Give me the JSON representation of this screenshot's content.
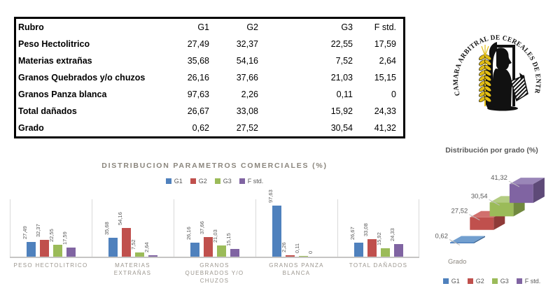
{
  "table": {
    "headers": [
      "Rubro",
      "G1",
      "G2",
      "G3",
      "F std."
    ],
    "rows": [
      {
        "label": "Peso Hectolitrico",
        "values": [
          "27,49",
          "32,37",
          "22,55",
          "17,59"
        ]
      },
      {
        "label": "Materias extrañas",
        "values": [
          "35,68",
          "54,16",
          "7,52",
          "2,64"
        ]
      },
      {
        "label": "Granos Quebrados y/o chuzos",
        "values": [
          "26,16",
          "37,66",
          "21,03",
          "15,15"
        ]
      },
      {
        "label": "Granos Panza blanca",
        "values": [
          "97,63",
          "2,26",
          "0,11",
          "0"
        ]
      },
      {
        "label": "Total dañados",
        "values": [
          "26,67",
          "33,08",
          "15,92",
          "24,33"
        ]
      },
      {
        "label": "Grado",
        "values": [
          "0,62",
          "27,52",
          "30,54",
          "41,32"
        ]
      }
    ]
  },
  "logo": {
    "text": "CAMARA ARBITRAL DE CEREALES DE ENTRE RIOS",
    "wheat_color": "#e2bd15"
  },
  "chart_data": [
    {
      "type": "bar",
      "title": "DISTRIBUCION PARAMETROS COMERCIALES (%)",
      "categories": [
        "PESO HECTOLITRICO",
        "MATERIAS EXTRAÑAS",
        "GRANOS QUEBRADOS Y/O CHUZOS",
        "GRANOS PANZA BLANCA",
        "TOTAL DAÑADOS"
      ],
      "category_lines": [
        [
          "PESO HECTOLITRICO"
        ],
        [
          "MATERIAS",
          "EXTRAÑAS"
        ],
        [
          "GRANOS",
          "QUEBRADOS Y/O",
          "CHUZOS"
        ],
        [
          "GRANOS PANZA",
          "BLANCA"
        ],
        [
          "TOTAL DAÑADOS"
        ]
      ],
      "series": [
        {
          "name": "G1",
          "color": "#4f81bd",
          "values": [
            27.49,
            35.68,
            26.16,
            97.63,
            26.67
          ],
          "labels": [
            "27,49",
            "35,68",
            "26,16",
            "97,63",
            "26,67"
          ]
        },
        {
          "name": "G2",
          "color": "#c0504d",
          "values": [
            32.37,
            54.16,
            37.66,
            2.26,
            33.08
          ],
          "labels": [
            "32,37",
            "54,16",
            "37,66",
            "2,26",
            "33,08"
          ]
        },
        {
          "name": "G3",
          "color": "#9bbb59",
          "values": [
            22.55,
            7.52,
            21.03,
            0.11,
            15.92
          ],
          "labels": [
            "22,55",
            "7,52",
            "21,03",
            "0,11",
            "15,92"
          ]
        },
        {
          "name": "F std.",
          "color": "#8064a2",
          "values": [
            17.59,
            2.64,
            15.15,
            0,
            24.33
          ],
          "labels": [
            "17,59",
            "2,64",
            "15,15",
            "0",
            "24,33"
          ]
        }
      ],
      "legend_position": "top",
      "xlabel": "",
      "ylabel": "",
      "ylim": [
        0,
        110
      ],
      "grid": "vertical category separators, no y axis labels"
    },
    {
      "type": "bar3d",
      "title": "Distribución por grado (%)",
      "xlabel": "Grado",
      "categories": [
        "G1",
        "G2",
        "G3",
        "F std."
      ],
      "values": [
        0.62,
        27.52,
        30.54,
        41.32
      ],
      "labels": [
        "0,62",
        "27,52",
        "30,54",
        "41,32"
      ],
      "series_colors": [
        {
          "front": "#4f81bd",
          "top": "#729fcf",
          "side": "#38618f"
        },
        {
          "front": "#c0504d",
          "top": "#d1706d",
          "side": "#8f3b38"
        },
        {
          "front": "#9bbb59",
          "top": "#b3cc82",
          "side": "#71893f"
        },
        {
          "front": "#8064a2",
          "top": "#9a86b8",
          "side": "#5e4a78"
        }
      ],
      "legend_position": "bottom",
      "label_color": "#595959"
    }
  ],
  "colors": {
    "chart_title_main": "#8b867d",
    "chart_title_grade": "#595959",
    "axis_text": "#9b968e",
    "value_label": "#595959",
    "baseline": "#c6c5c4",
    "separator": "#d9d9d9"
  }
}
